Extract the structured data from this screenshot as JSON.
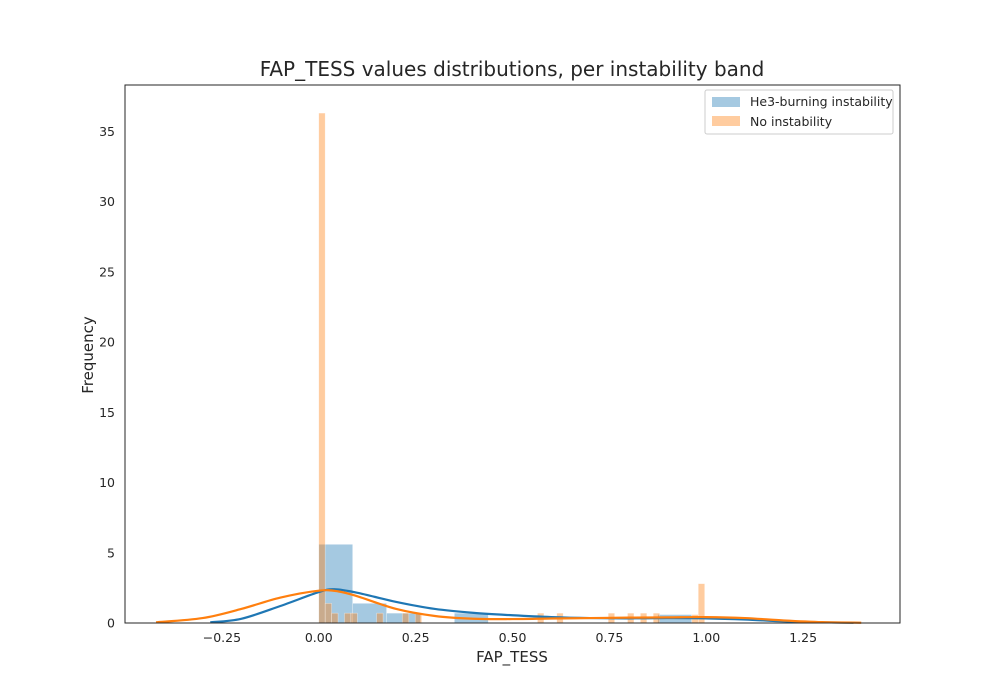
{
  "chart_data": {
    "type": "bar",
    "title": "FAP_TESS values distributions, per instability band",
    "xlabel": "FAP_TESS",
    "ylabel": "Frequency",
    "xlim": [
      -0.5,
      1.5
    ],
    "ylim": [
      0,
      38.3
    ],
    "xticks": [
      -0.25,
      0.0,
      0.25,
      0.5,
      0.75,
      1.0,
      1.25
    ],
    "xtick_labels": [
      "−0.25",
      "0.00",
      "0.25",
      "0.50",
      "0.75",
      "1.00",
      "1.25"
    ],
    "yticks": [
      0,
      5,
      10,
      15,
      20,
      25,
      30,
      35
    ],
    "ytick_labels": [
      "0",
      "5",
      "10",
      "15",
      "20",
      "25",
      "30",
      "35"
    ],
    "grid": false,
    "legend_position": "top-right",
    "series": [
      {
        "name": "He3-burning instability",
        "color": "#1f77b4",
        "bin_width": 0.0875,
        "bins": [
          {
            "x0": 0.0,
            "x1": 0.0875,
            "value": 5.6
          },
          {
            "x0": 0.0875,
            "x1": 0.175,
            "value": 1.4
          },
          {
            "x0": 0.175,
            "x1": 0.2625,
            "value": 0.7
          },
          {
            "x0": 0.35,
            "x1": 0.4375,
            "value": 0.7
          },
          {
            "x0": 0.875,
            "x1": 0.9625,
            "value": 0.6
          }
        ],
        "kde_x": [
          -0.28,
          -0.2,
          -0.1,
          0.0,
          0.04,
          0.1,
          0.2,
          0.3,
          0.4,
          0.5,
          0.6,
          0.7,
          0.8,
          0.9,
          1.0,
          1.1,
          1.2,
          1.3,
          1.38
        ],
        "kde_y": [
          0.05,
          0.3,
          1.2,
          2.2,
          2.4,
          2.15,
          1.5,
          1.0,
          0.72,
          0.55,
          0.42,
          0.35,
          0.33,
          0.35,
          0.33,
          0.25,
          0.12,
          0.05,
          0.02
        ]
      },
      {
        "name": "No instability",
        "color": "#ff7f0e",
        "bin_width": 0.0166,
        "bins": [
          {
            "x0": 0.0,
            "x1": 0.0166,
            "value": 36.3
          },
          {
            "x0": 0.0166,
            "x1": 0.0332,
            "value": 1.4
          },
          {
            "x0": 0.0332,
            "x1": 0.0498,
            "value": 0.7
          },
          {
            "x0": 0.0664,
            "x1": 0.083,
            "value": 0.7
          },
          {
            "x0": 0.083,
            "x1": 0.0996,
            "value": 0.7
          },
          {
            "x0": 0.1494,
            "x1": 0.166,
            "value": 0.7
          },
          {
            "x0": 0.2158,
            "x1": 0.2324,
            "value": 0.7
          },
          {
            "x0": 0.249,
            "x1": 0.2656,
            "value": 0.7
          },
          {
            "x0": 0.5644,
            "x1": 0.581,
            "value": 0.7
          },
          {
            "x0": 0.6142,
            "x1": 0.6308,
            "value": 0.7
          },
          {
            "x0": 0.747,
            "x1": 0.7636,
            "value": 0.7
          },
          {
            "x0": 0.7968,
            "x1": 0.8134,
            "value": 0.7
          },
          {
            "x0": 0.83,
            "x1": 0.8466,
            "value": 0.7
          },
          {
            "x0": 0.8632,
            "x1": 0.8798,
            "value": 0.7
          },
          {
            "x0": 0.9628,
            "x1": 0.9794,
            "value": 0.6
          },
          {
            "x0": 0.9794,
            "x1": 0.996,
            "value": 2.8
          }
        ],
        "kde_x": [
          -0.42,
          -0.3,
          -0.2,
          -0.1,
          0.0,
          0.05,
          0.1,
          0.2,
          0.3,
          0.4,
          0.5,
          0.6,
          0.7,
          0.8,
          0.9,
          1.0,
          1.1,
          1.2,
          1.3,
          1.4
        ],
        "kde_y": [
          0.05,
          0.35,
          1.0,
          1.8,
          2.3,
          2.25,
          1.9,
          1.0,
          0.5,
          0.3,
          0.28,
          0.32,
          0.35,
          0.38,
          0.4,
          0.42,
          0.35,
          0.18,
          0.06,
          0.02
        ]
      }
    ]
  }
}
